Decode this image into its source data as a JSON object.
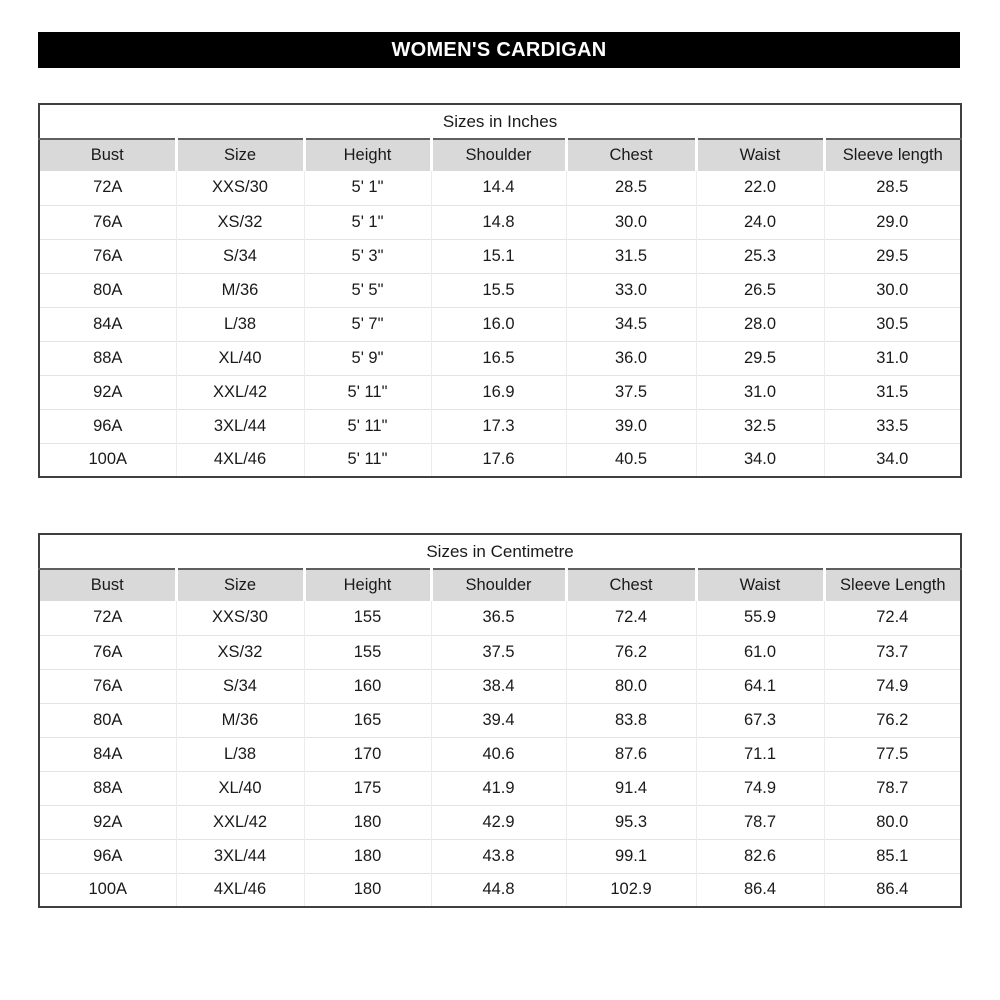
{
  "page_title": "WOMEN'S CARDIGAN",
  "colors": {
    "title_bg": "#000000",
    "title_text": "#ffffff",
    "header_bg": "#d9d9d9",
    "table_border": "#3f3f3f",
    "caption_divider": "#5f5f5f",
    "grid_line": "#e4e4e4",
    "cell_text": "#1a1a1a"
  },
  "tables": [
    {
      "id": "inches",
      "caption": "Sizes in Inches",
      "columns": [
        "Bust",
        "Size",
        "Height",
        "Shoulder",
        "Chest",
        "Waist",
        "Sleeve length"
      ],
      "rows": [
        [
          "72A",
          "XXS/30",
          "5' 1\"",
          "14.4",
          "28.5",
          "22.0",
          "28.5"
        ],
        [
          "76A",
          "XS/32",
          "5' 1\"",
          "14.8",
          "30.0",
          "24.0",
          "29.0"
        ],
        [
          "76A",
          "S/34",
          "5' 3\"",
          "15.1",
          "31.5",
          "25.3",
          "29.5"
        ],
        [
          "80A",
          "M/36",
          "5' 5\"",
          "15.5",
          "33.0",
          "26.5",
          "30.0"
        ],
        [
          "84A",
          "L/38",
          "5' 7\"",
          "16.0",
          "34.5",
          "28.0",
          "30.5"
        ],
        [
          "88A",
          "XL/40",
          "5' 9\"",
          "16.5",
          "36.0",
          "29.5",
          "31.0"
        ],
        [
          "92A",
          "XXL/42",
          "5' 11\"",
          "16.9",
          "37.5",
          "31.0",
          "31.5"
        ],
        [
          "96A",
          "3XL/44",
          "5' 11\"",
          "17.3",
          "39.0",
          "32.5",
          "33.5"
        ],
        [
          "100A",
          "4XL/46",
          "5' 11\"",
          "17.6",
          "40.5",
          "34.0",
          "34.0"
        ]
      ]
    },
    {
      "id": "centimetre",
      "caption": "Sizes in Centimetre",
      "columns": [
        "Bust",
        "Size",
        "Height",
        "Shoulder",
        "Chest",
        "Waist",
        "Sleeve Length"
      ],
      "rows": [
        [
          "72A",
          "XXS/30",
          "155",
          "36.5",
          "72.4",
          "55.9",
          "72.4"
        ],
        [
          "76A",
          "XS/32",
          "155",
          "37.5",
          "76.2",
          "61.0",
          "73.7"
        ],
        [
          "76A",
          "S/34",
          "160",
          "38.4",
          "80.0",
          "64.1",
          "74.9"
        ],
        [
          "80A",
          "M/36",
          "165",
          "39.4",
          "83.8",
          "67.3",
          "76.2"
        ],
        [
          "84A",
          "L/38",
          "170",
          "40.6",
          "87.6",
          "71.1",
          "77.5"
        ],
        [
          "88A",
          "XL/40",
          "175",
          "41.9",
          "91.4",
          "74.9",
          "78.7"
        ],
        [
          "92A",
          "XXL/42",
          "180",
          "42.9",
          "95.3",
          "78.7",
          "80.0"
        ],
        [
          "96A",
          "3XL/44",
          "180",
          "43.8",
          "99.1",
          "82.6",
          "85.1"
        ],
        [
          "100A",
          "4XL/46",
          "180",
          "44.8",
          "102.9",
          "86.4",
          "86.4"
        ]
      ]
    }
  ]
}
